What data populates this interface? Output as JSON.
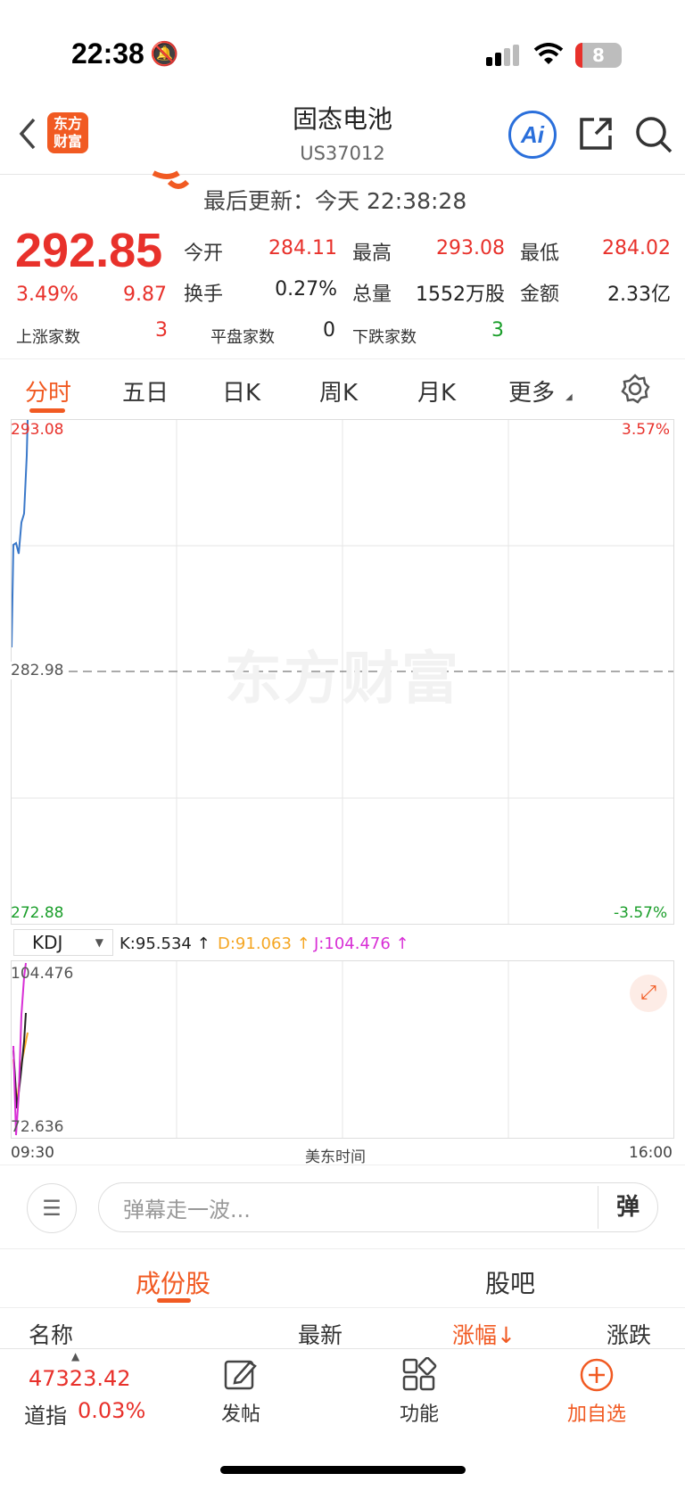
{
  "status_bar": {
    "time": "22:38",
    "battery": "8"
  },
  "header": {
    "title": "固态电池",
    "code": "US37012",
    "logo_text_top": "东方",
    "logo_text_bottom": "财富",
    "ai_label": "Ai"
  },
  "update": {
    "label": "最后更新：今天 22:38:28"
  },
  "quote": {
    "price": "292.85",
    "change_pct": "3.49%",
    "change": "9.87",
    "open_label": "今开",
    "open": "284.11",
    "high_label": "最高",
    "high": "293.08",
    "low_label": "最低",
    "low": "284.02",
    "turnover_label": "换手",
    "turnover": "0.27%",
    "volume_label": "总量",
    "volume": "1552万股",
    "amount_label": "金额",
    "amount": "2.33亿",
    "up_label": "上涨家数",
    "up": "3",
    "flat_label": "平盘家数",
    "flat": "0",
    "down_label": "下跌家数",
    "down": "3"
  },
  "tabs": [
    "分时",
    "五日",
    "日K",
    "周K",
    "月K",
    "更多"
  ],
  "chart": {
    "y_max": "293.08",
    "y_mid": "282.98",
    "y_min": "272.88",
    "pct_max": "3.57%",
    "pct_min": "-3.57%",
    "watermark": "东方财富",
    "x_start": "09:30",
    "x_mid": "美东时间",
    "x_end": "16:00"
  },
  "kdj": {
    "selector": "KDJ",
    "k": "K:95.534 ↑",
    "d": "D:91.063 ↑",
    "j": "J:104.476 ↑",
    "y_max": "104.476",
    "y_min": "72.636",
    "colors": {
      "k": "#222222",
      "d": "#f5a623",
      "j": "#d82fd6"
    }
  },
  "danmu": {
    "placeholder": "弹幕走一波...",
    "button": "弹"
  },
  "sub_tabs": [
    "成份股",
    "股吧"
  ],
  "table_headers": [
    "名称",
    "最新",
    "涨幅↓",
    "涨跌"
  ],
  "bottom_bar": {
    "index_value": "47323.42",
    "index_name": "道指",
    "index_pct": "0.03%",
    "items": [
      "发帖",
      "功能",
      "加自选"
    ]
  },
  "colors": {
    "accent": "#f15a22",
    "up": "#e8312b",
    "down": "#1a9e2a",
    "line": "#3a78c9"
  }
}
